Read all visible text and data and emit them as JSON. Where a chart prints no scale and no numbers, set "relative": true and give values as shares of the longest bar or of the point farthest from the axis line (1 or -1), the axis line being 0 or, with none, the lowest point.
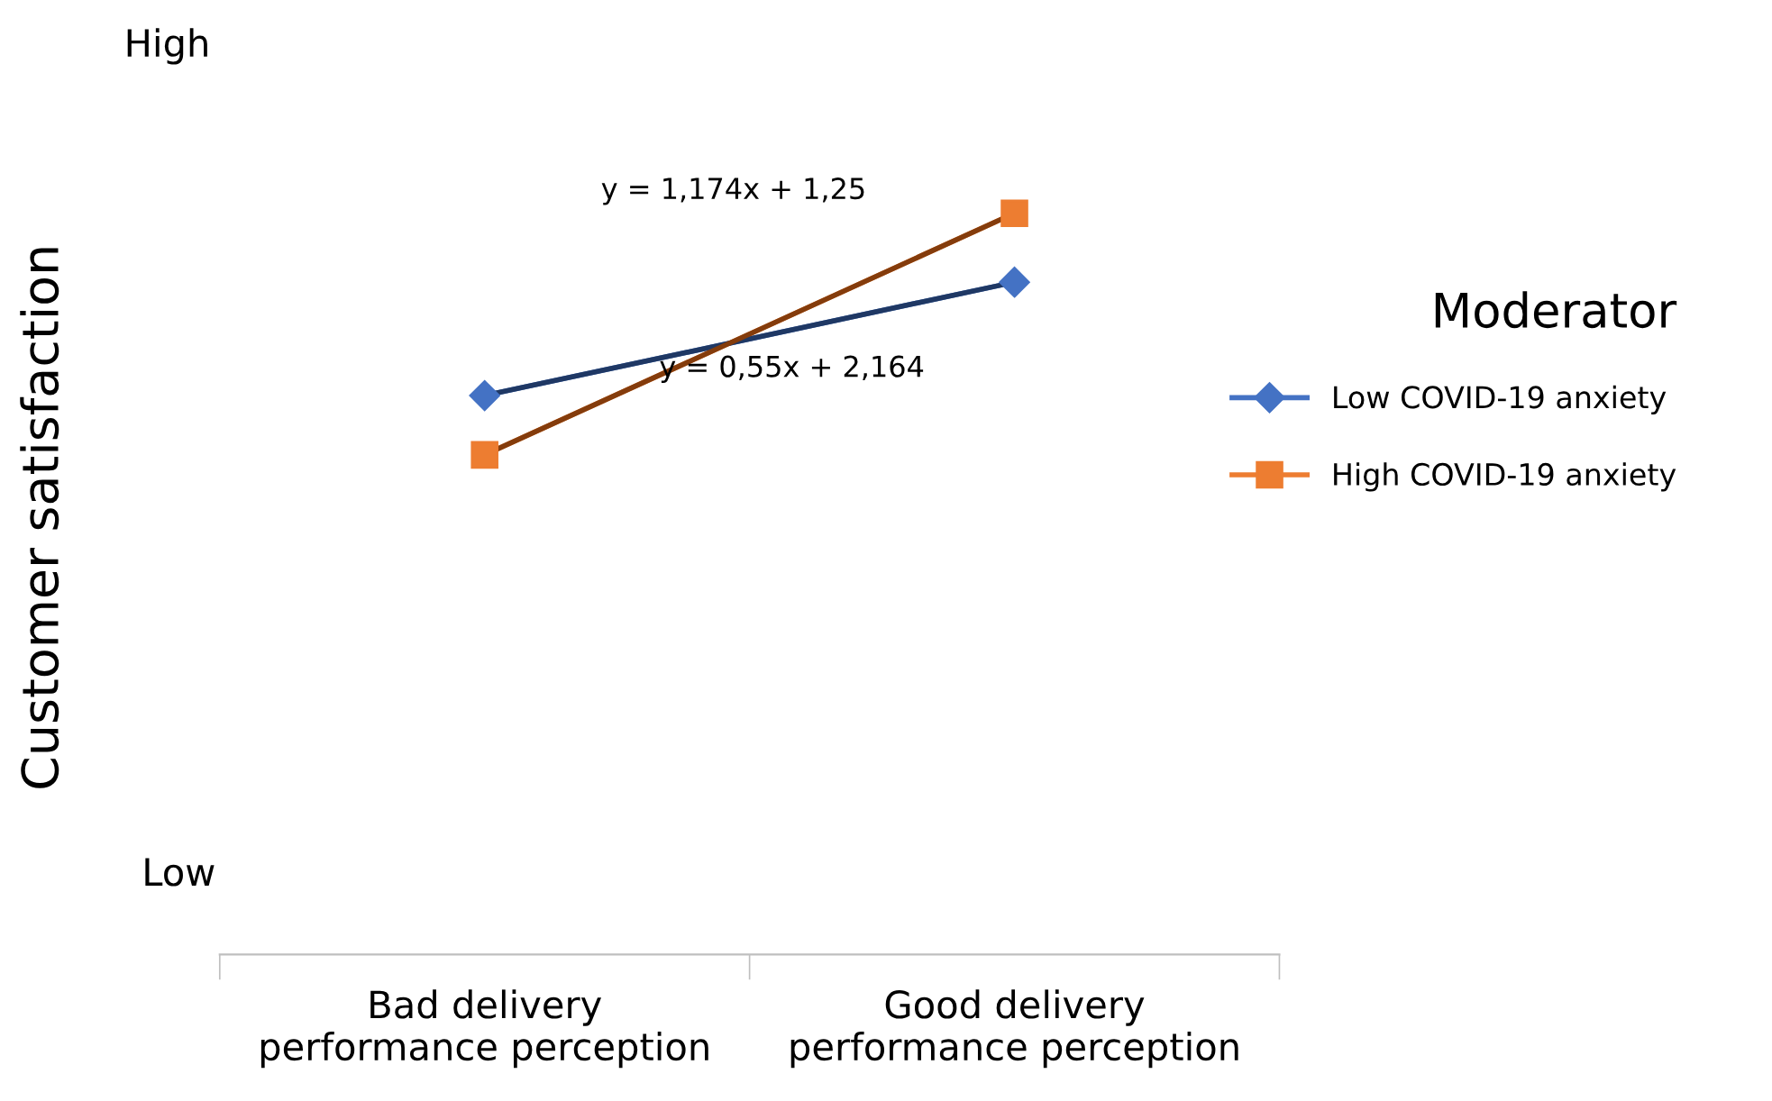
{
  "chart_data": {
    "type": "line",
    "relative": true,
    "ylabel": "Customer satisfaction",
    "legend_title": "Moderator",
    "legend": "right",
    "grid": false,
    "categories": [
      "Bad delivery\nperformance perception",
      "Good delivery\nperformance perception"
    ],
    "series": [
      {
        "color": "#1f3864",
        "values": [
          0.754,
          0.907
        ],
        "marker": "none"
      },
      {
        "color": "#843c0c",
        "values": [
          0.674,
          1
        ],
        "marker": "none"
      },
      {
        "name": "Low COVID-19 anxiety",
        "color": "#4472c4",
        "values": [
          0.754,
          0.907
        ],
        "marker": "diamond"
      },
      {
        "name": "High COVID-19 anxiety",
        "color": "#ed7d31",
        "values": [
          0.674,
          1
        ],
        "marker": "square"
      }
    ],
    "annotations": [
      "High",
      "Low",
      "y = 1,174x + 1,25",
      "y = 0,55x + 2,164"
    ]
  }
}
